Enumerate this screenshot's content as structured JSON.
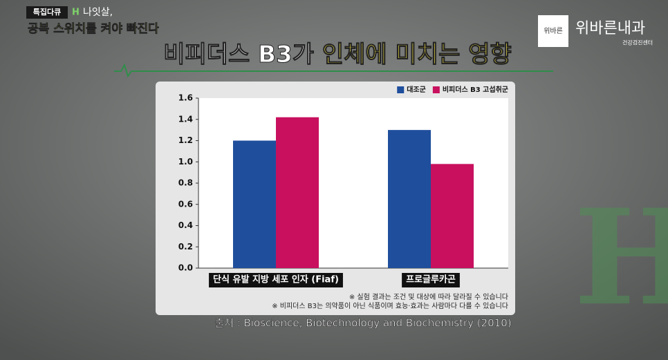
{
  "chart_data": {
    "type": "bar",
    "title": [
      "비피더스 B3가",
      "인체에 미치는 영향"
    ],
    "program": {
      "badge": "특집다큐",
      "badge_mark": "H",
      "subtitle_1": "나잇살,",
      "subtitle_2": "공복 스위치를 켜야 빠진다"
    },
    "logo": {
      "icon": "위바른",
      "name": "위바른내과",
      "sub": "건강검진센터"
    },
    "categories": [
      "단식 유발 지방 세포 인자 (Fiaf)",
      "프로글루카곤"
    ],
    "series": [
      {
        "name": "대조군",
        "color": "#1f4e9c",
        "values": [
          1.2,
          1.3
        ]
      },
      {
        "name": "비피더스 B3 고섭취군",
        "color": "#c8105e",
        "values": [
          1.42,
          0.98
        ]
      }
    ],
    "ylim": [
      0,
      1.6
    ],
    "yticks": [
      {
        "value": 0,
        "label": "0.0"
      },
      0.2,
      0.4,
      0.6,
      0.8,
      {
        "value": 1,
        "label": "1.0"
      },
      1.2,
      1.4,
      1.6
    ],
    "legend": "top-right",
    "notes": [
      "※ 실험 결과는 조건 및 대상에 따라 달라질 수 있습니다",
      "※ 비피더스 B3는 의약품이 아닌 식품이며 효능·효과는 사람마다 다를 수 있습니다"
    ],
    "source": "출처 : Bioscience, Biotechnology and Biochemistry (2010)"
  }
}
